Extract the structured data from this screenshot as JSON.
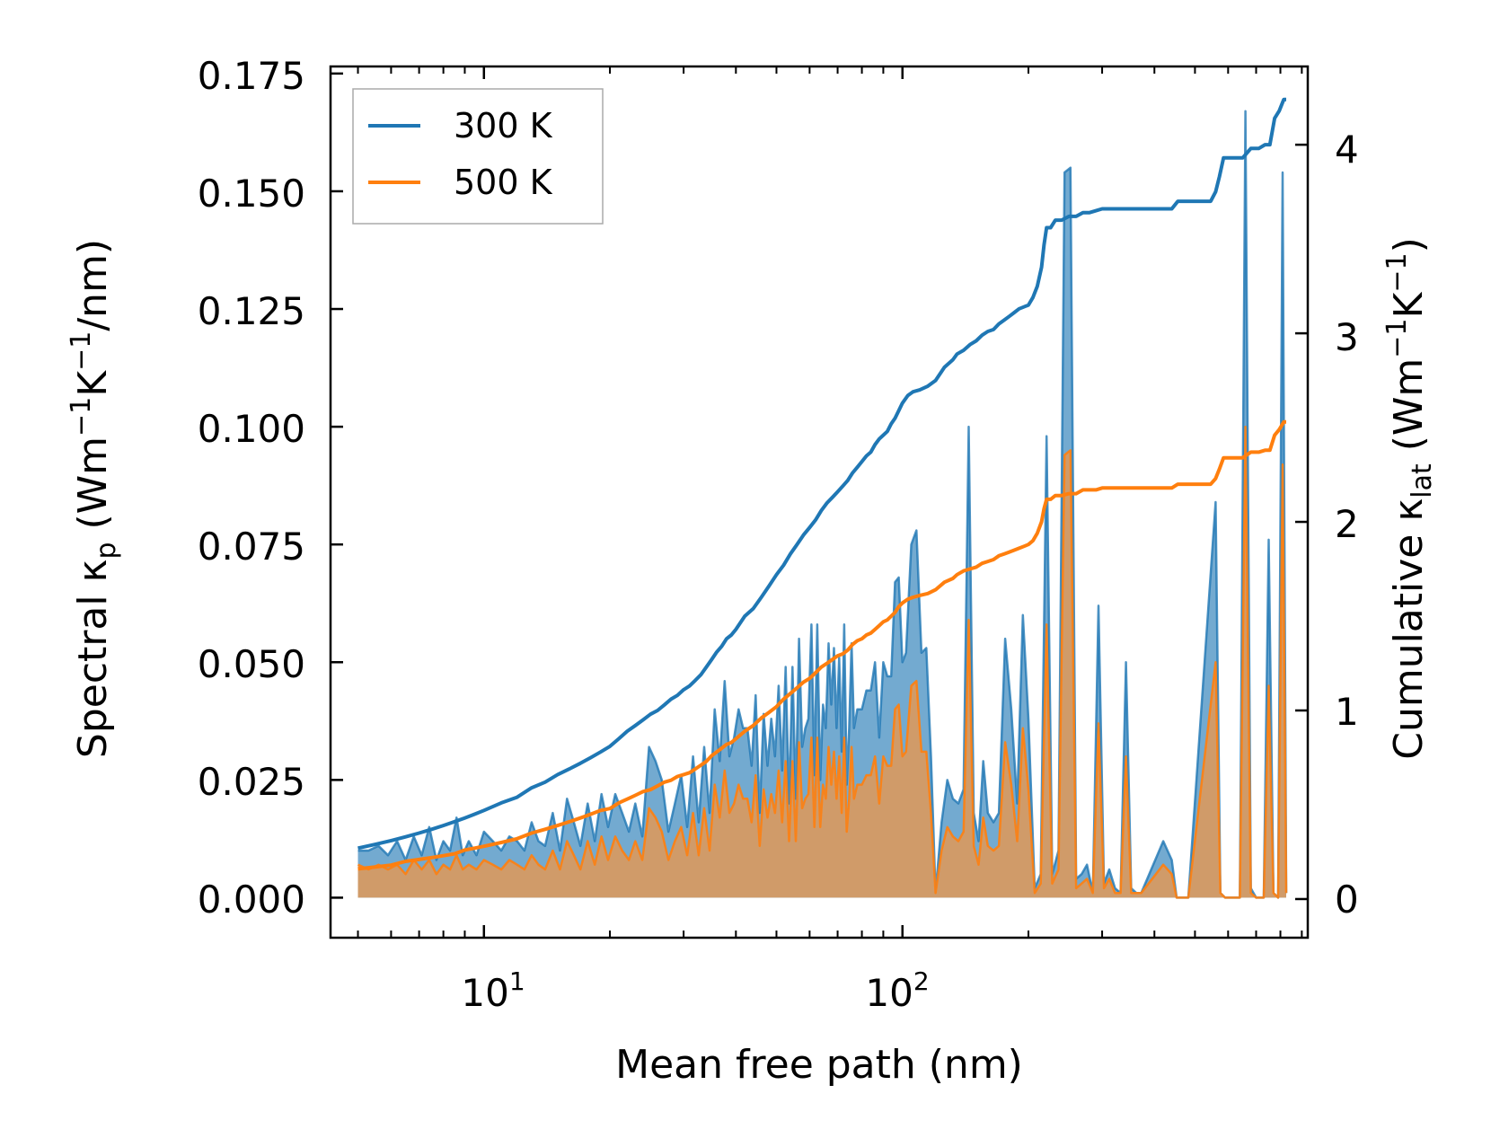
{
  "chart_data": {
    "type": "line",
    "title": "",
    "xlabel": "Mean free path (nm)",
    "ylabel_left": {
      "base": "Spectral ",
      "kappa": "κ",
      "sub": "p",
      "units_pre": " (Wm",
      "exp1": "−1",
      "units_mid": "K",
      "exp2": "−1",
      "units_post": "/nm)"
    },
    "ylabel_right": {
      "base": "Cumulative ",
      "kappa": "κ",
      "sub": "lat",
      "units_pre": " (Wm",
      "exp1": "−1",
      "units_mid": "K",
      "exp2": "−1",
      "units_post": ")"
    },
    "xscale": "log",
    "xlim": [
      4.3,
      930
    ],
    "ylim_left": [
      -0.0085,
      0.1765
    ],
    "ylim_right": [
      -0.205,
      4.415
    ],
    "x_ticks": [
      {
        "base": "10",
        "exp": "1",
        "value": 10
      },
      {
        "base": "10",
        "exp": "2",
        "value": 100
      }
    ],
    "y_left_ticks": [
      "0.000",
      "0.025",
      "0.050",
      "0.075",
      "0.100",
      "0.125",
      "0.150",
      "0.175"
    ],
    "y_right_ticks": [
      "0",
      "1",
      "2",
      "3",
      "4"
    ],
    "legend": {
      "position": "upper left",
      "entries": [
        "300 K",
        "500 K"
      ]
    },
    "colors": {
      "s300": "#1f77b4",
      "s500": "#ff7f0e",
      "fill300": "#5b9bc8",
      "fill500": "#d59a63"
    },
    "spectral_x": [
      5.0,
      5.3,
      5.6,
      5.9,
      6.2,
      6.5,
      6.8,
      7.1,
      7.4,
      7.7,
      8.0,
      8.3,
      8.6,
      8.9,
      9.2,
      9.6,
      10.0,
      10.5,
      11.0,
      11.5,
      12.0,
      12.5,
      13.0,
      13.5,
      14.0,
      14.6,
      15.2,
      15.8,
      16.4,
      17.0,
      17.7,
      18.4,
      19.1,
      19.8,
      20.6,
      21.4,
      22.2,
      23.0,
      23.9,
      24.8,
      25.7,
      26.6,
      27.6,
      28.6,
      29.6,
      30.6,
      31.6,
      32.6,
      33.6,
      34.6,
      35.6,
      36.6,
      37.6,
      38.6,
      39.6,
      40.6,
      41.6,
      42.6,
      43.6,
      44.6,
      45.6,
      46.6,
      47.6,
      48.6,
      49.6,
      50.6,
      51.6,
      52.6,
      53.6,
      54.6,
      55.6,
      56.6,
      57.6,
      58.6,
      59.6,
      60.6,
      61.6,
      62.6,
      63.6,
      64.6,
      65.6,
      66.6,
      67.6,
      68.6,
      69.6,
      70.6,
      71.6,
      72.6,
      73.6,
      74.6,
      75.6,
      76.6,
      78,
      80,
      82,
      84,
      86,
      88,
      90,
      92,
      94,
      96,
      98,
      100,
      102,
      105,
      108,
      111,
      114,
      117,
      120,
      124,
      128,
      132,
      136,
      140,
      144,
      148,
      152,
      156,
      160,
      165,
      170,
      176,
      182,
      188,
      194,
      200,
      207,
      214,
      221,
      228,
      236,
      244,
      252,
      260,
      268,
      276,
      285,
      294,
      303,
      312,
      322,
      332,
      342,
      352,
      362,
      372,
      420,
      440,
      452,
      462,
      472,
      482,
      560,
      575,
      590,
      605,
      620,
      640,
      660,
      680,
      700,
      715,
      730,
      750,
      770,
      790,
      810,
      826
    ],
    "spectral_300": [
      0.01,
      0.01,
      0.011,
      0.009,
      0.012,
      0.008,
      0.013,
      0.009,
      0.015,
      0.008,
      0.012,
      0.01,
      0.017,
      0.009,
      0.012,
      0.009,
      0.014,
      0.012,
      0.01,
      0.013,
      0.012,
      0.01,
      0.016,
      0.012,
      0.011,
      0.018,
      0.01,
      0.021,
      0.016,
      0.011,
      0.02,
      0.012,
      0.022,
      0.015,
      0.022,
      0.018,
      0.014,
      0.02,
      0.013,
      0.032,
      0.029,
      0.025,
      0.014,
      0.02,
      0.026,
      0.015,
      0.03,
      0.016,
      0.032,
      0.018,
      0.04,
      0.029,
      0.046,
      0.03,
      0.034,
      0.04,
      0.036,
      0.036,
      0.028,
      0.043,
      0.018,
      0.039,
      0.028,
      0.038,
      0.03,
      0.045,
      0.027,
      0.049,
      0.02,
      0.049,
      0.021,
      0.055,
      0.032,
      0.036,
      0.038,
      0.058,
      0.026,
      0.058,
      0.025,
      0.041,
      0.036,
      0.054,
      0.041,
      0.053,
      0.036,
      0.051,
      0.031,
      0.058,
      0.024,
      0.036,
      0.054,
      0.036,
      0.04,
      0.04,
      0.044,
      0.044,
      0.05,
      0.034,
      0.05,
      0.047,
      0.047,
      0.067,
      0.068,
      0.05,
      0.052,
      0.075,
      0.078,
      0.052,
      0.053,
      0.03,
      0.001,
      0.016,
      0.025,
      0.021,
      0.02,
      0.023,
      0.1,
      0.018,
      0.012,
      0.029,
      0.018,
      0.016,
      0.018,
      0.055,
      0.04,
      0.02,
      0.06,
      0.038,
      0.002,
      0.005,
      0.098,
      0.005,
      0.01,
      0.154,
      0.155,
      0.004,
      0.005,
      0.007,
      0.001,
      0.062,
      0.003,
      0.006,
      0.002,
      0.001,
      0.05,
      0.002,
      0.001,
      0.001,
      0.012,
      0.008,
      0.0,
      0.0,
      0.0,
      0.0,
      0.084,
      0.001,
      0.0,
      0.0,
      0.0,
      0.0,
      0.167,
      0.002,
      0.0,
      0.0,
      0.0,
      0.076,
      0.001,
      0.0,
      0.154,
      0.001,
      0.0
    ],
    "spectral_500": [
      0.007,
      0.006,
      0.007,
      0.006,
      0.007,
      0.005,
      0.008,
      0.006,
      0.008,
      0.005,
      0.007,
      0.006,
      0.009,
      0.006,
      0.007,
      0.006,
      0.008,
      0.007,
      0.006,
      0.008,
      0.007,
      0.006,
      0.009,
      0.007,
      0.006,
      0.01,
      0.006,
      0.012,
      0.009,
      0.006,
      0.012,
      0.007,
      0.013,
      0.008,
      0.013,
      0.01,
      0.008,
      0.012,
      0.008,
      0.019,
      0.017,
      0.014,
      0.008,
      0.012,
      0.015,
      0.009,
      0.018,
      0.009,
      0.019,
      0.01,
      0.024,
      0.017,
      0.027,
      0.018,
      0.02,
      0.024,
      0.021,
      0.021,
      0.016,
      0.026,
      0.011,
      0.023,
      0.017,
      0.022,
      0.018,
      0.027,
      0.016,
      0.029,
      0.012,
      0.029,
      0.012,
      0.033,
      0.019,
      0.021,
      0.022,
      0.034,
      0.015,
      0.034,
      0.015,
      0.024,
      0.021,
      0.032,
      0.024,
      0.031,
      0.021,
      0.03,
      0.018,
      0.034,
      0.014,
      0.021,
      0.032,
      0.021,
      0.024,
      0.024,
      0.026,
      0.026,
      0.03,
      0.02,
      0.03,
      0.028,
      0.028,
      0.04,
      0.041,
      0.03,
      0.031,
      0.045,
      0.046,
      0.031,
      0.031,
      0.018,
      0.001,
      0.01,
      0.015,
      0.013,
      0.012,
      0.014,
      0.059,
      0.011,
      0.007,
      0.017,
      0.011,
      0.01,
      0.011,
      0.033,
      0.024,
      0.012,
      0.036,
      0.023,
      0.001,
      0.003,
      0.058,
      0.003,
      0.006,
      0.094,
      0.095,
      0.002,
      0.003,
      0.004,
      0.001,
      0.037,
      0.002,
      0.004,
      0.001,
      0.001,
      0.03,
      0.001,
      0.001,
      0.001,
      0.007,
      0.005,
      0.0,
      0.0,
      0.0,
      0.0,
      0.05,
      0.001,
      0.0,
      0.0,
      0.0,
      0.0,
      0.1,
      0.001,
      0.0,
      0.0,
      0.0,
      0.045,
      0.001,
      0.0,
      0.092,
      0.001,
      0.0
    ],
    "cumulative_x": [
      5.0,
      5.5,
      6.0,
      6.5,
      7.0,
      7.5,
      8.0,
      8.5,
      9.0,
      9.5,
      10.0,
      11.0,
      12.0,
      13.0,
      14.0,
      15.0,
      16.0,
      17.0,
      18.0,
      19.0,
      20.0,
      21.0,
      22.0,
      23.0,
      24.0,
      25.0,
      26.0,
      27.0,
      28.0,
      29.0,
      30.0,
      31.0,
      32.0,
      33.0,
      34.0,
      35.0,
      36.0,
      37.0,
      38.0,
      39.0,
      40.0,
      42.0,
      44.0,
      46.0,
      48.0,
      50.0,
      52.0,
      54.0,
      56.0,
      58.0,
      60.0,
      62.0,
      64.0,
      66.0,
      68.0,
      70.0,
      72.0,
      74.0,
      76.0,
      78.0,
      80.0,
      82.0,
      84.0,
      86.0,
      88.0,
      90.0,
      92.0,
      94.0,
      96.0,
      98.0,
      100.0,
      103.0,
      106.0,
      110.0,
      115.0,
      120.0,
      126.0,
      132.0,
      135.0,
      140.0,
      145.0,
      150.0,
      155.0,
      160.0,
      165.0,
      170.0,
      175.0,
      180.0,
      185.0,
      190.0,
      195.0,
      200.0,
      205.0,
      210.0,
      215.0,
      218.0,
      221.0,
      226.0,
      232.0,
      240.0,
      250.0,
      260.0,
      270.0,
      280.0,
      290.0,
      300.0,
      320.0,
      340.0,
      360.0,
      380.0,
      400.0,
      420.0,
      440.0,
      455.0,
      470.0,
      490.0,
      520.0,
      545.0,
      560.0,
      572.0,
      585.0,
      600.0,
      620.0,
      650.0,
      680.0,
      710.0,
      735.0,
      755.0,
      775.0,
      795.0,
      815.0,
      826.0
    ],
    "cumulative_300": [
      0.27,
      0.29,
      0.31,
      0.33,
      0.35,
      0.37,
      0.39,
      0.41,
      0.43,
      0.45,
      0.47,
      0.51,
      0.54,
      0.59,
      0.62,
      0.66,
      0.69,
      0.72,
      0.75,
      0.78,
      0.81,
      0.85,
      0.89,
      0.92,
      0.95,
      0.98,
      1.0,
      1.03,
      1.06,
      1.08,
      1.11,
      1.13,
      1.16,
      1.19,
      1.23,
      1.27,
      1.31,
      1.34,
      1.38,
      1.4,
      1.43,
      1.5,
      1.54,
      1.6,
      1.66,
      1.72,
      1.77,
      1.83,
      1.88,
      1.93,
      1.97,
      2.01,
      2.06,
      2.1,
      2.13,
      2.16,
      2.19,
      2.22,
      2.26,
      2.29,
      2.32,
      2.35,
      2.37,
      2.41,
      2.44,
      2.46,
      2.48,
      2.52,
      2.55,
      2.59,
      2.63,
      2.67,
      2.69,
      2.7,
      2.72,
      2.75,
      2.82,
      2.86,
      2.89,
      2.91,
      2.94,
      2.96,
      2.99,
      3.01,
      3.02,
      3.05,
      3.07,
      3.09,
      3.11,
      3.13,
      3.14,
      3.15,
      3.19,
      3.25,
      3.35,
      3.47,
      3.56,
      3.56,
      3.6,
      3.6,
      3.62,
      3.62,
      3.64,
      3.64,
      3.65,
      3.66,
      3.66,
      3.66,
      3.66,
      3.66,
      3.66,
      3.66,
      3.66,
      3.7,
      3.7,
      3.7,
      3.7,
      3.7,
      3.75,
      3.83,
      3.93,
      3.93,
      3.93,
      3.93,
      3.98,
      3.98,
      4.0,
      4.0,
      4.14,
      4.18,
      4.24,
      4.24
    ],
    "cumulative_500": [
      0.16,
      0.17,
      0.18,
      0.2,
      0.21,
      0.22,
      0.23,
      0.24,
      0.26,
      0.27,
      0.28,
      0.3,
      0.32,
      0.35,
      0.37,
      0.39,
      0.41,
      0.43,
      0.45,
      0.47,
      0.48,
      0.51,
      0.53,
      0.55,
      0.57,
      0.58,
      0.6,
      0.62,
      0.63,
      0.65,
      0.66,
      0.67,
      0.69,
      0.71,
      0.73,
      0.76,
      0.78,
      0.8,
      0.82,
      0.83,
      0.85,
      0.89,
      0.92,
      0.96,
      0.99,
      1.02,
      1.06,
      1.09,
      1.12,
      1.15,
      1.17,
      1.2,
      1.23,
      1.25,
      1.27,
      1.29,
      1.3,
      1.32,
      1.35,
      1.37,
      1.38,
      1.4,
      1.41,
      1.43,
      1.45,
      1.47,
      1.48,
      1.5,
      1.52,
      1.55,
      1.57,
      1.59,
      1.6,
      1.61,
      1.62,
      1.64,
      1.68,
      1.7,
      1.72,
      1.74,
      1.75,
      1.76,
      1.78,
      1.79,
      1.8,
      1.82,
      1.83,
      1.84,
      1.85,
      1.86,
      1.87,
      1.88,
      1.9,
      1.94,
      2.0,
      2.07,
      2.12,
      2.12,
      2.14,
      2.14,
      2.15,
      2.15,
      2.17,
      2.17,
      2.17,
      2.18,
      2.18,
      2.18,
      2.18,
      2.18,
      2.18,
      2.18,
      2.18,
      2.2,
      2.2,
      2.2,
      2.2,
      2.2,
      2.23,
      2.28,
      2.34,
      2.34,
      2.34,
      2.34,
      2.37,
      2.37,
      2.38,
      2.38,
      2.46,
      2.49,
      2.53,
      2.53
    ]
  }
}
